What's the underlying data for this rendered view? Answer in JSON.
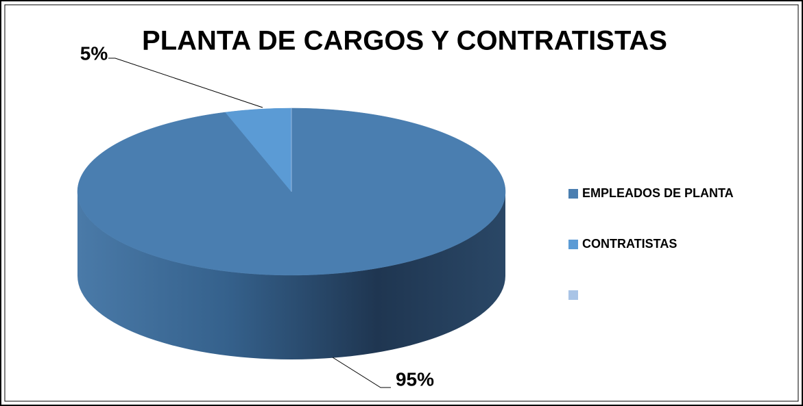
{
  "chart_data": {
    "type": "pie",
    "title": "PLANTA DE CARGOS Y CONTRATISTAS",
    "categories": [
      "EMPLEADOS DE PLANTA",
      "CONTRATISTAS",
      null
    ],
    "values": [
      95,
      5,
      0
    ],
    "value_labels": [
      "95%",
      "5%",
      null
    ],
    "colors": [
      "#4a7eb0",
      "#5b9bd5",
      "#a9c4e6"
    ],
    "legend": "right"
  }
}
